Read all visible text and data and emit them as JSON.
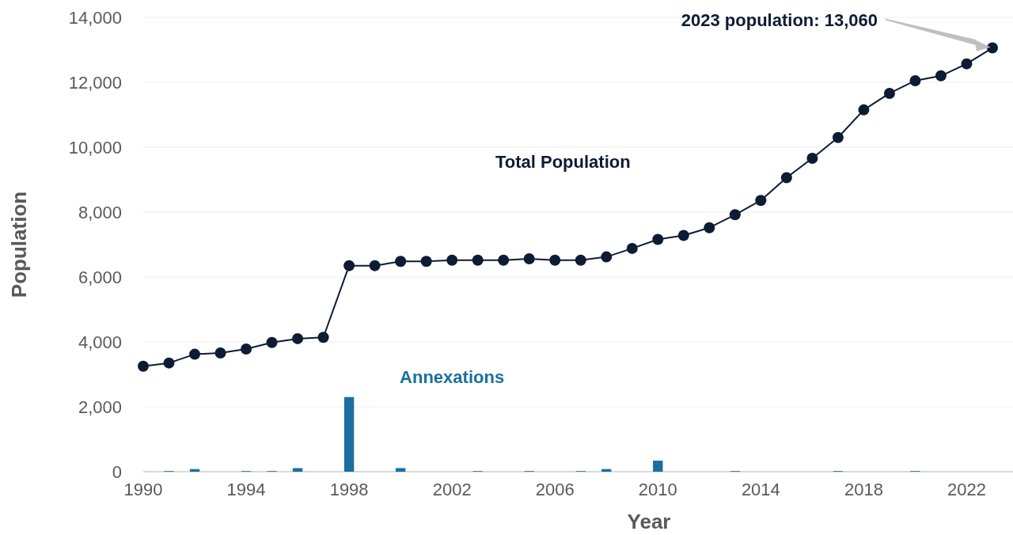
{
  "chart_data": {
    "type": "line",
    "xlabel": "Year",
    "ylabel": "Population",
    "x": [
      1990,
      1991,
      1992,
      1993,
      1994,
      1995,
      1996,
      1997,
      1998,
      1999,
      2000,
      2001,
      2002,
      2003,
      2004,
      2005,
      2006,
      2007,
      2008,
      2009,
      2010,
      2011,
      2012,
      2013,
      2014,
      2015,
      2016,
      2017,
      2018,
      2019,
      2020,
      2021,
      2022,
      2023
    ],
    "series": [
      {
        "name": "Total Population",
        "color": "#0d1b33",
        "values": [
          3250,
          3350,
          3620,
          3660,
          3780,
          3980,
          4100,
          4140,
          6350,
          6350,
          6480,
          6480,
          6520,
          6520,
          6520,
          6560,
          6520,
          6520,
          6620,
          6880,
          7160,
          7280,
          7520,
          7920,
          8360,
          9060,
          9660,
          10300,
          11150,
          11660,
          12050,
          12200,
          12570,
          13060
        ]
      },
      {
        "name": "Annexations",
        "type": "bar",
        "color": "#1a6fa0",
        "values": [
          null,
          20,
          80,
          null,
          20,
          20,
          110,
          null,
          2300,
          null,
          110,
          null,
          null,
          20,
          null,
          20,
          null,
          20,
          80,
          null,
          340,
          null,
          null,
          20,
          null,
          null,
          null,
          20,
          null,
          null,
          20,
          null,
          null,
          null
        ]
      }
    ],
    "xlim": [
      1990,
      2023.8
    ],
    "xticks": [
      1990,
      1994,
      1998,
      2002,
      2006,
      2010,
      2014,
      2018,
      2022
    ],
    "ylim": [
      0,
      14000
    ],
    "yticks": [
      {
        "value": 0,
        "label": "0"
      },
      {
        "value": 2000,
        "label": "2,000"
      },
      {
        "value": 4000,
        "label": "4,000"
      },
      {
        "value": 6000,
        "label": "6,000"
      },
      {
        "value": 8000,
        "label": "8,000"
      },
      {
        "value": 10000,
        "label": "10,000"
      },
      {
        "value": 12000,
        "label": "12,000"
      },
      {
        "value": 14000,
        "label": "14,000"
      }
    ],
    "grid": "y",
    "marker": "circle",
    "line_style": "solid",
    "annotations": [
      "2023 population: 13,060"
    ]
  }
}
